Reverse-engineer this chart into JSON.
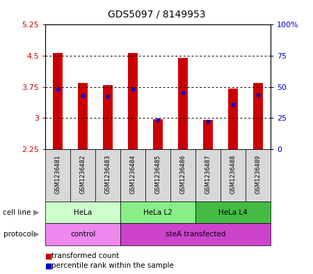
{
  "title": "GDS5097 / 8149953",
  "samples": [
    "GSM1236481",
    "GSM1236482",
    "GSM1236483",
    "GSM1236484",
    "GSM1236485",
    "GSM1236486",
    "GSM1236487",
    "GSM1236488",
    "GSM1236489"
  ],
  "red_values": [
    4.57,
    3.85,
    3.79,
    4.57,
    2.98,
    4.45,
    2.95,
    3.72,
    3.85
  ],
  "blue_values": [
    3.7,
    3.55,
    3.52,
    3.7,
    2.96,
    3.62,
    2.93,
    3.32,
    3.57
  ],
  "ymin": 2.25,
  "ymax": 5.25,
  "yticks": [
    2.25,
    3.0,
    3.75,
    4.5,
    5.25
  ],
  "ytick_labels": [
    "2.25",
    "3",
    "3.75",
    "4.5",
    "5.25"
  ],
  "right_yticks": [
    0,
    25,
    50,
    75,
    100
  ],
  "right_ytick_labels": [
    "0",
    "25",
    "50",
    "75",
    "100%"
  ],
  "bar_bottom": 2.25,
  "bar_color": "#cc0000",
  "blue_color": "#0000cc",
  "dotted_lines": [
    3.0,
    3.75,
    4.5
  ],
  "cell_line_groups": [
    {
      "label": "HeLa",
      "start": 0,
      "end": 2,
      "color": "#ccffcc"
    },
    {
      "label": "HeLa L2",
      "start": 3,
      "end": 5,
      "color": "#88ee88"
    },
    {
      "label": "HeLa L4",
      "start": 6,
      "end": 8,
      "color": "#44bb44"
    }
  ],
  "protocol_groups": [
    {
      "label": "control",
      "start": 0,
      "end": 2,
      "color": "#ee88ee"
    },
    {
      "label": "steA transfected",
      "start": 3,
      "end": 8,
      "color": "#cc44cc"
    }
  ],
  "legend_red_label": "transformed count",
  "legend_blue_label": "percentile rank within the sample",
  "sample_bg": "#d8d8d8",
  "bar_width": 0.4,
  "label_cell_line": "cell line",
  "label_protocol": "protocol"
}
